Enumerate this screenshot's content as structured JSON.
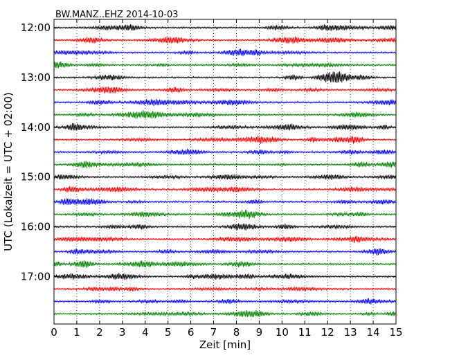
{
  "chart_data": {
    "type": "line",
    "title": "BW.MANZ..EHZ 2014-10-03",
    "xlabel": "Zeit  [min]",
    "ylabel": "UTC (Lokalzeit = UTC + 02:00)",
    "xlim": [
      0,
      15
    ],
    "x_ticks": [
      "0",
      "1",
      "2",
      "3",
      "4",
      "5",
      "6",
      "7",
      "8",
      "9",
      "10",
      "11",
      "12",
      "13",
      "14",
      "15"
    ],
    "y_tick_labels": [
      "12:00",
      "13:00",
      "14:00",
      "15:00",
      "16:00",
      "17:00"
    ],
    "trace_start_times": [
      "12:00",
      "12:15",
      "12:30",
      "12:45",
      "13:00",
      "13:15",
      "13:30",
      "13:45",
      "14:00",
      "14:15",
      "14:30",
      "14:45",
      "15:00",
      "15:15",
      "15:30",
      "15:45",
      "16:00",
      "16:15",
      "16:30",
      "16:45",
      "17:00",
      "17:15",
      "17:30",
      "17:45"
    ],
    "trace_colors": [
      "#000000",
      "#ff0000",
      "#0000ff",
      "#008000"
    ],
    "grid": "vertical dotted at each minute",
    "series": [
      {
        "values": [
          0
        ]
      }
    ]
  }
}
